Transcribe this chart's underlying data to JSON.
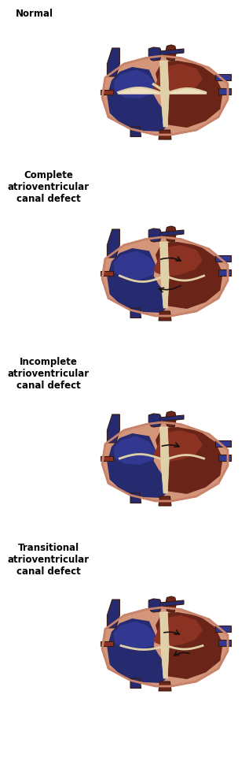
{
  "background_color": "#ffffff",
  "panels": [
    {
      "label": "Normal",
      "arrow_type": "none",
      "label_lines": [
        "Normal"
      ]
    },
    {
      "label": "Complete\natrioventricular\ncanal defect",
      "arrow_type": "complete",
      "label_lines": [
        "Complete",
        "atrioventricular",
        "canal defect"
      ]
    },
    {
      "label": "Incomplete\natrioventricular\ncanal defect",
      "arrow_type": "incomplete",
      "label_lines": [
        "Incomplete",
        "atrioventricular",
        "canal defect"
      ]
    },
    {
      "label": "Transitional\natrioventricular\ncanal defect",
      "arrow_type": "transitional",
      "label_lines": [
        "Transitional",
        "atrioventricular",
        "canal defect"
      ]
    }
  ],
  "colors": {
    "white_bg": "#ffffff",
    "skin_outer": "#D4967A",
    "skin_mid": "#C8836A",
    "skin_inner": "#E8B898",
    "dark_red": "#6B2418",
    "med_red": "#8B3222",
    "light_red": "#A84030",
    "blue_dark": "#252B6E",
    "blue_mid": "#323890",
    "blue_light": "#4A52A8",
    "cream": "#E0D0A8",
    "cream2": "#EEE0BE",
    "arrow_col": "#1A1010",
    "outline_dark": "#3A1A10"
  }
}
